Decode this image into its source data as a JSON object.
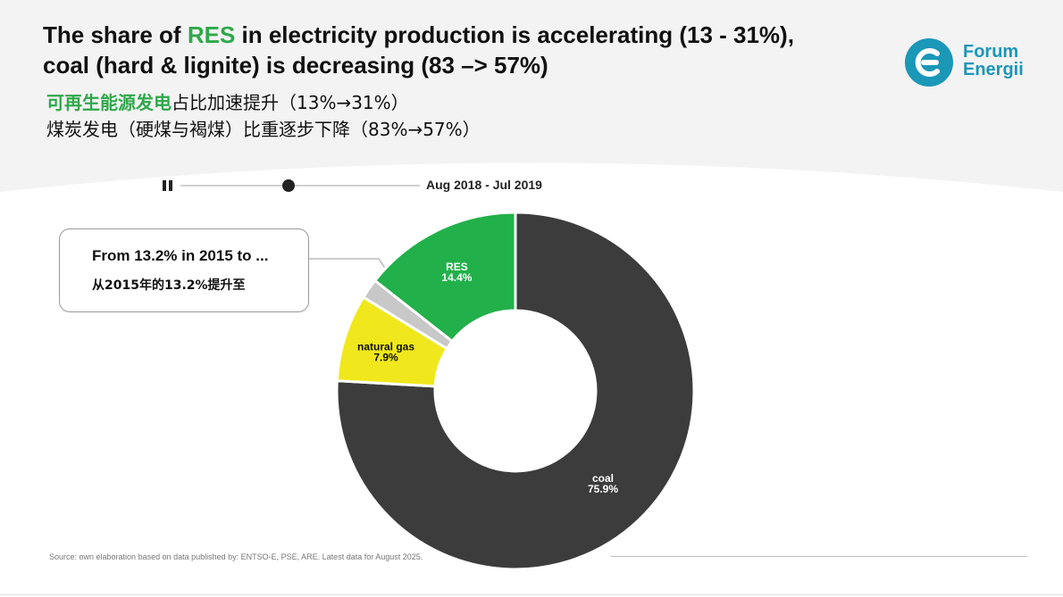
{
  "header": {
    "title_line1_pre": "The share of ",
    "title_line1_accent": "RES",
    "title_line1_post": " in electricity production is accelerating  (13 - 31%),",
    "title_line2": "coal (hard & lignite) is decreasing (83 –> 57%)",
    "subtitle_line1_accent": "可再生能源发电",
    "subtitle_line1_rest": "占比加速提升（13%→31%）",
    "subtitle_line2": "煤炭发电（硬煤与褐煤）比重逐步下降（83%→57%）"
  },
  "logo": {
    "line1": "Forum",
    "line2": "Energii",
    "color": "#1b97b8"
  },
  "timeline": {
    "period_label": "Aug 2018 - Jul 2019",
    "progress": 0.45
  },
  "callout": {
    "text_en": "From 13.2% in 2015 to ...",
    "text_cn": "从2015年的13.2%提升至"
  },
  "source": "Source: own elaboration based on data published by: ENTSO-E, PSE, ARE. Latest data for August 2025.",
  "colors": {
    "res": "#22b04a",
    "other": "#c8c8c8",
    "gas": "#f0e81c",
    "coal": "#3c3c3c",
    "accent": "#2ea84a"
  },
  "chart_data": {
    "type": "pie",
    "donut": true,
    "categories": [
      "coal",
      "natural gas",
      "",
      "RES"
    ],
    "values": [
      75.9,
      7.9,
      1.8,
      14.4
    ],
    "labels": [
      "75.9%",
      "7.9%",
      "",
      "14.4%"
    ],
    "colors": [
      "#3c3c3c",
      "#f0e81c",
      "#c8c8c8",
      "#22b04a"
    ]
  }
}
